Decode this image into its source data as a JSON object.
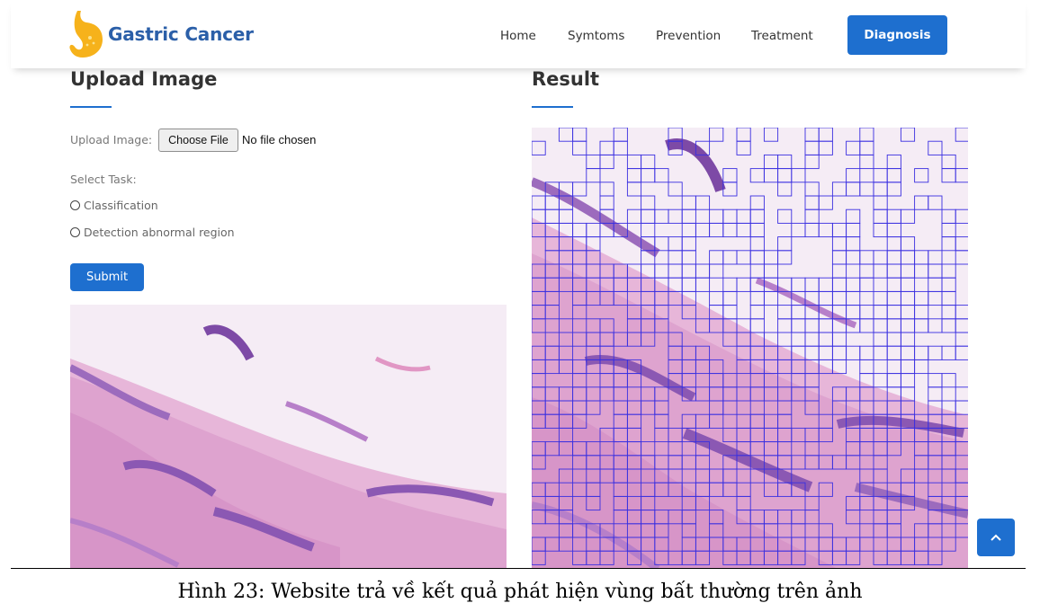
{
  "header": {
    "brand": "Gastric Cancer",
    "nav": [
      "Home",
      "Symtoms",
      "Prevention",
      "Treatment"
    ],
    "cta": "Diagnosis"
  },
  "upload": {
    "title": "Upload Image",
    "file_label": "Upload Image:",
    "file_button": "Choose File",
    "file_status": "No file chosen",
    "task_label": "Select Task:",
    "options": [
      "Classification",
      "Detection abnormal region"
    ],
    "submit": "Submit"
  },
  "result": {
    "title": "Result"
  },
  "caption": "Hình 23: Website trả về kết quả phát hiện vùng bất thường trên ảnh",
  "colors": {
    "accent": "#1e6fcf",
    "brand": "#2b5fa8",
    "grid": "#3a2fe0",
    "tissue_pink": "#e7b6d9",
    "tissue_purple": "#8a55b0"
  },
  "icons": {
    "logo": "stomach-logo-icon",
    "scroll_top": "chevron-up-icon"
  }
}
